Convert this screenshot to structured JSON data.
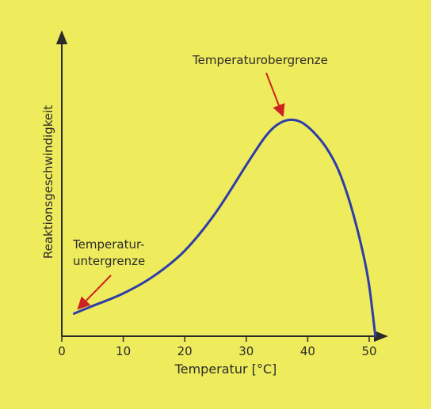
{
  "chart_data": {
    "type": "line",
    "title": "",
    "xlabel": "Temperatur [°C]",
    "ylabel": "Reaktionsgeschwindigkeit",
    "xlim": [
      0,
      53
    ],
    "ylim": [
      0,
      100
    ],
    "x_ticks": [
      0,
      10,
      20,
      30,
      40,
      50
    ],
    "x_tick_labels": [
      "0",
      "10",
      "20",
      "30",
      "40",
      "50"
    ],
    "grid": false,
    "series": [
      {
        "color": "#2e3da8",
        "x": [
          2,
          5,
          10,
          15,
          20,
          25,
          30,
          33,
          35,
          37,
          39,
          41,
          43,
          45,
          47,
          49,
          50,
          51
        ],
        "y": [
          9,
          12,
          17,
          24,
          34,
          49,
          68,
          79,
          84,
          86,
          85,
          81,
          75,
          66,
          52,
          33,
          20,
          0
        ]
      }
    ],
    "annotations": [
      {
        "lines": [
          "Temperaturobergrenze"
        ],
        "point": [
          37,
          86
        ],
        "color": "#cc2222"
      },
      {
        "lines": [
          "Temperatur-",
          "untergrenze"
        ],
        "point": [
          2,
          9
        ],
        "color": "#cc2222"
      }
    ]
  }
}
